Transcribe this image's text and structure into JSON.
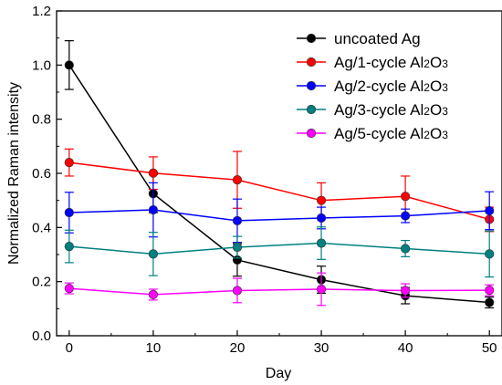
{
  "chart_data": {
    "type": "line",
    "xlabel": "Day",
    "ylabel": "Normalized Raman intensity",
    "xlim": [
      -1.5,
      51.5
    ],
    "ylim": [
      0.0,
      1.2
    ],
    "xticks": [
      0,
      10,
      20,
      30,
      40,
      50
    ],
    "xtick_labels": [
      "0",
      "10",
      "20",
      "30",
      "40",
      "50"
    ],
    "yticks": [
      0.0,
      0.2,
      0.4,
      0.6,
      0.8,
      1.0,
      1.2
    ],
    "ytick_labels": [
      "0.0",
      "0.2",
      "0.4",
      "0.6",
      "0.8",
      "1.0",
      "1.2"
    ],
    "legend_position": "top-right",
    "x": [
      0,
      10,
      20,
      30,
      40,
      50
    ],
    "series": [
      {
        "name": "uncoated Ag",
        "legend_parts": [
          {
            "t": "uncoated Ag",
            "sub": false
          }
        ],
        "color": "#000000",
        "values": [
          1.0,
          0.525,
          0.28,
          0.207,
          0.148,
          0.123
        ],
        "errors": [
          0.09,
          0.07,
          0.06,
          0.05,
          0.03,
          0.02
        ]
      },
      {
        "name": "Ag/1-cycle Al2O3",
        "legend_parts": [
          {
            "t": "Ag/1-cycle Al",
            "sub": false
          },
          {
            "t": "2",
            "sub": true
          },
          {
            "t": "O",
            "sub": false
          },
          {
            "t": "3",
            "sub": true
          }
        ],
        "color": "#ff0000",
        "values": [
          0.64,
          0.601,
          0.576,
          0.5,
          0.515,
          0.43
        ],
        "errors": [
          0.05,
          0.06,
          0.105,
          0.065,
          0.075,
          0.045
        ]
      },
      {
        "name": "Ag/2-cycle Al2O3",
        "legend_parts": [
          {
            "t": "Ag/2-cycle Al",
            "sub": false
          },
          {
            "t": "2",
            "sub": true
          },
          {
            "t": "O",
            "sub": false
          },
          {
            "t": "3",
            "sub": true
          }
        ],
        "color": "#0000ff",
        "values": [
          0.455,
          0.465,
          0.425,
          0.435,
          0.443,
          0.462
        ],
        "errors": [
          0.075,
          0.1,
          0.08,
          0.04,
          0.025,
          0.07
        ]
      },
      {
        "name": "Ag/3-cycle Al2O3",
        "legend_parts": [
          {
            "t": "Ag/3-cycle Al",
            "sub": false
          },
          {
            "t": "2",
            "sub": true
          },
          {
            "t": "O",
            "sub": false
          },
          {
            "t": "3",
            "sub": true
          }
        ],
        "color": "#008080",
        "values": [
          0.33,
          0.302,
          0.327,
          0.342,
          0.322,
          0.302
        ],
        "errors": [
          0.06,
          0.08,
          0.04,
          0.06,
          0.03,
          0.085
        ]
      },
      {
        "name": "Ag/5-cycle Al2O3",
        "legend_parts": [
          {
            "t": "Ag/5-cycle Al",
            "sub": false
          },
          {
            "t": "2",
            "sub": true
          },
          {
            "t": "O",
            "sub": false
          },
          {
            "t": "3",
            "sub": true
          }
        ],
        "color": "#ff00ff",
        "values": [
          0.175,
          0.152,
          0.167,
          0.172,
          0.167,
          0.168
        ],
        "errors": [
          0.02,
          0.02,
          0.045,
          0.06,
          0.025,
          0.02
        ]
      }
    ]
  }
}
